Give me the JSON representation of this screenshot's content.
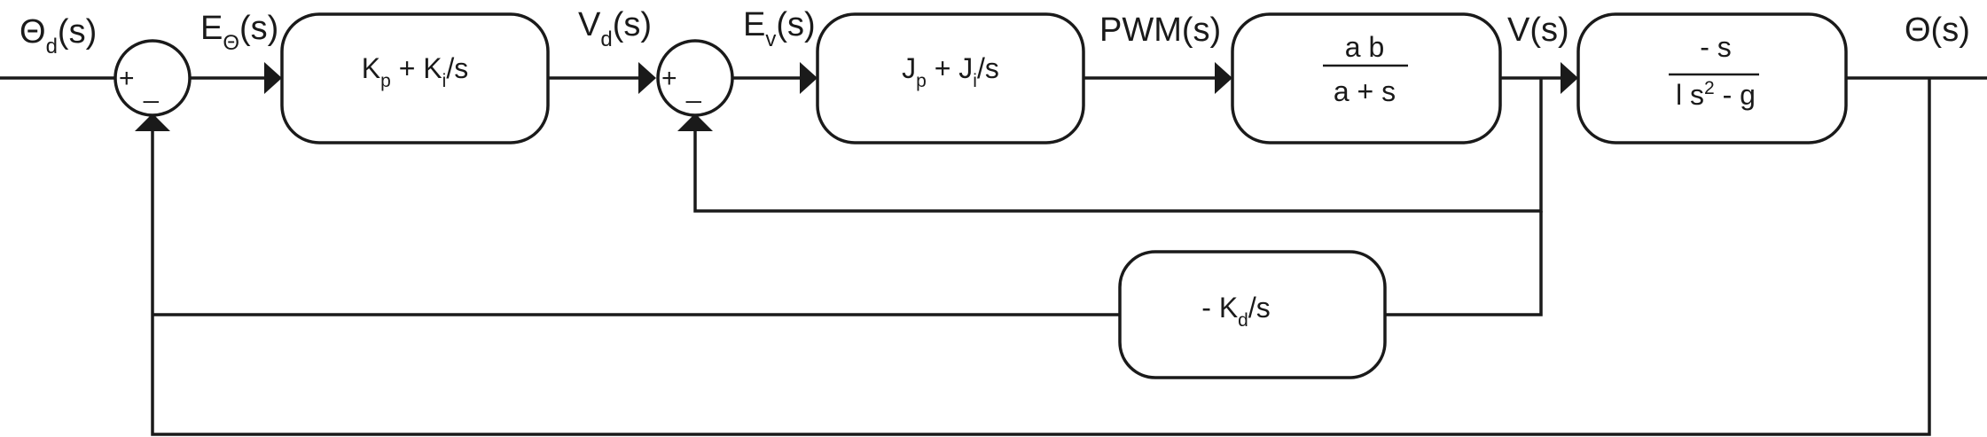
{
  "signals": {
    "theta_d": {
      "main": "Θ",
      "sub": "d",
      "tail": "(s)"
    },
    "e_theta": {
      "main": "E",
      "sub": "Θ",
      "tail": "(s)"
    },
    "v_d": {
      "main": "V",
      "sub": "d",
      "tail": "(s)"
    },
    "e_v": {
      "main": "E",
      "sub": "v",
      "tail": "(s)"
    },
    "pwm": {
      "text": "PWM(s)"
    },
    "v": {
      "text": "V(s)"
    },
    "theta": {
      "text": "Θ(s)"
    }
  },
  "blocks": {
    "outer_pi": {
      "k1": "K",
      "s1": "p",
      "op": " + ",
      "k2": "K",
      "s2": "i",
      "tail": "/s"
    },
    "inner_pi": {
      "k1": "J",
      "s1": "p",
      "op": " + ",
      "k2": "J",
      "s2": "i",
      "tail": "/s"
    },
    "motor": {
      "numerator": "a b",
      "denominator": "a + s"
    },
    "pendulum": {
      "numerator": "- s",
      "den_a": "l s",
      "den_exp": "2",
      "den_b": " - g"
    },
    "derivative": {
      "prefix": "- K",
      "sub": "d",
      "tail": "/s"
    }
  },
  "junctions": {
    "sum1": {
      "plus": "+",
      "minus": "_"
    },
    "sum2": {
      "plus": "+",
      "minus": "_"
    }
  }
}
